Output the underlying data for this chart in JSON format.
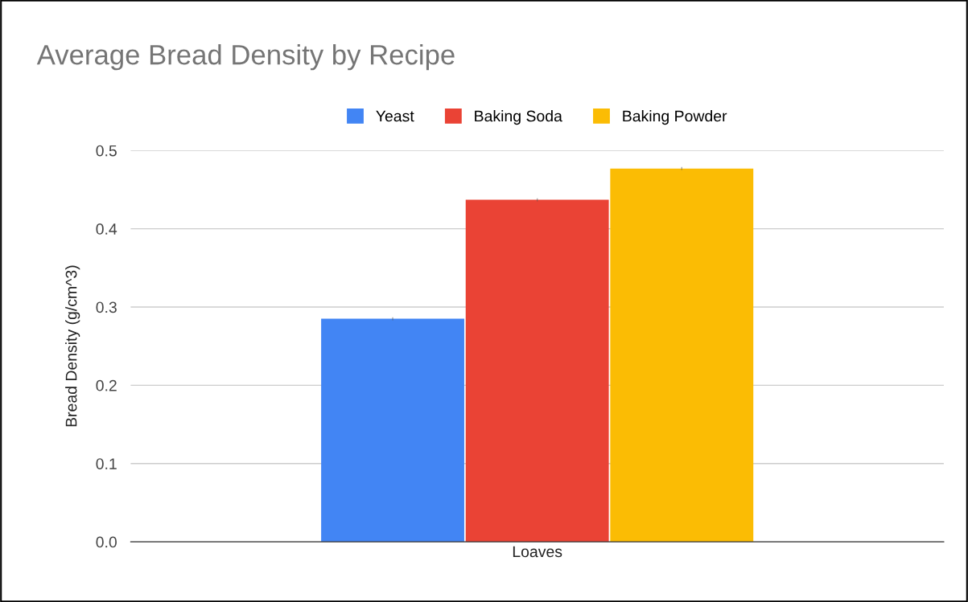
{
  "chart_data": {
    "type": "bar",
    "title": "Average Bread Density by Recipe",
    "ylabel": "Bread Density (g/cm^3)",
    "categories": [
      "Loaves"
    ],
    "series": [
      {
        "name": "Yeast",
        "color": "#4285f4",
        "values": [
          0.285
        ],
        "errors": [
          0.002
        ]
      },
      {
        "name": "Baking Soda",
        "color": "#ea4335",
        "values": [
          0.437
        ],
        "errors": [
          0.002
        ]
      },
      {
        "name": "Baking Powder",
        "color": "#fbbc04",
        "values": [
          0.477
        ],
        "errors": [
          0.002
        ]
      }
    ],
    "ylim": [
      0,
      0.5
    ],
    "yticks": [
      {
        "value": 0,
        "label": "0.0"
      },
      0.1,
      0.2,
      0.3,
      0.4,
      0.5
    ],
    "grid": "y",
    "legend": "top"
  }
}
